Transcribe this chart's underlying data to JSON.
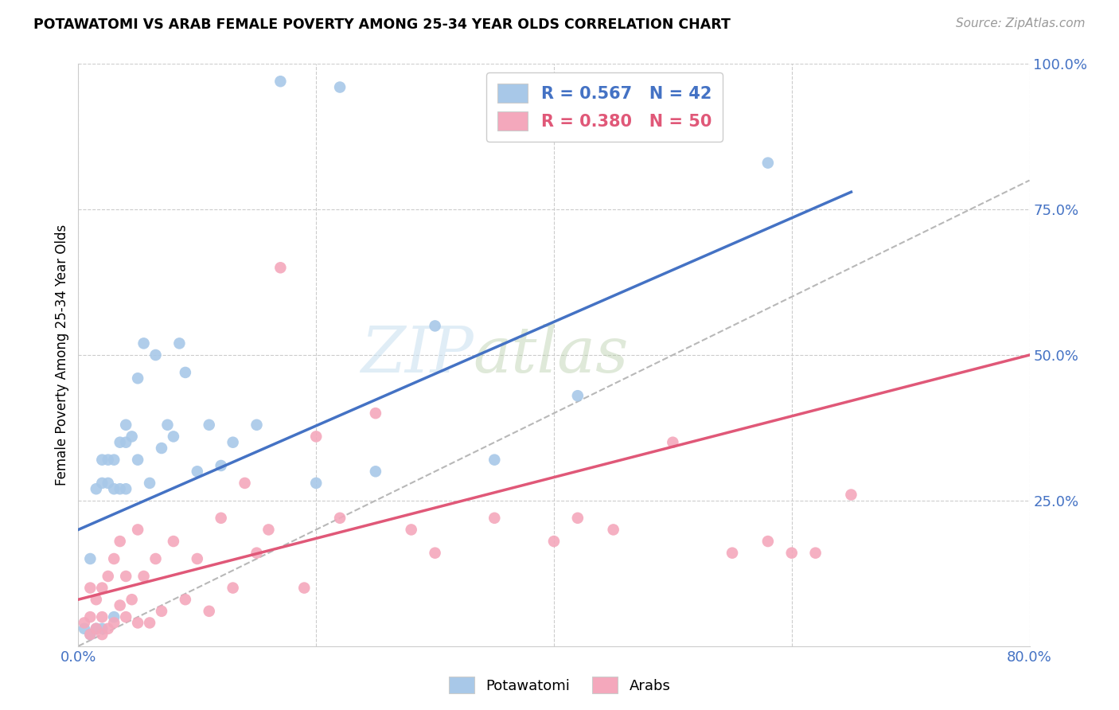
{
  "title": "POTAWATOMI VS ARAB FEMALE POVERTY AMONG 25-34 YEAR OLDS CORRELATION CHART",
  "source": "Source: ZipAtlas.com",
  "ylabel": "Female Poverty Among 25-34 Year Olds",
  "xlim": [
    0.0,
    0.8
  ],
  "ylim": [
    0.0,
    1.0
  ],
  "potawatomi_color": "#a8c8e8",
  "arab_color": "#f4a8bc",
  "potawatomi_line_color": "#4472c4",
  "arab_line_color": "#e05878",
  "diagonal_color": "#b8b8b8",
  "R_potawatomi": 0.567,
  "N_potawatomi": 42,
  "R_arab": 0.38,
  "N_arab": 50,
  "watermark_zip": "ZIP",
  "watermark_atlas": "atlas",
  "pot_line_x0": 0.0,
  "pot_line_y0": 0.2,
  "pot_line_x1": 0.65,
  "pot_line_y1": 0.78,
  "arab_line_x0": 0.0,
  "arab_line_y0": 0.08,
  "arab_line_x1": 0.8,
  "arab_line_y1": 0.5,
  "potawatomi_x": [
    0.005,
    0.01,
    0.01,
    0.015,
    0.015,
    0.02,
    0.02,
    0.02,
    0.025,
    0.025,
    0.03,
    0.03,
    0.03,
    0.035,
    0.035,
    0.04,
    0.04,
    0.04,
    0.045,
    0.05,
    0.05,
    0.055,
    0.06,
    0.065,
    0.07,
    0.075,
    0.08,
    0.085,
    0.09,
    0.1,
    0.11,
    0.12,
    0.13,
    0.15,
    0.17,
    0.2,
    0.22,
    0.25,
    0.3,
    0.35,
    0.42,
    0.58
  ],
  "potawatomi_y": [
    0.03,
    0.02,
    0.15,
    0.03,
    0.27,
    0.03,
    0.28,
    0.32,
    0.28,
    0.32,
    0.05,
    0.27,
    0.32,
    0.27,
    0.35,
    0.27,
    0.35,
    0.38,
    0.36,
    0.32,
    0.46,
    0.52,
    0.28,
    0.5,
    0.34,
    0.38,
    0.36,
    0.52,
    0.47,
    0.3,
    0.38,
    0.31,
    0.35,
    0.38,
    0.97,
    0.28,
    0.96,
    0.3,
    0.55,
    0.32,
    0.43,
    0.83
  ],
  "arab_x": [
    0.005,
    0.01,
    0.01,
    0.01,
    0.015,
    0.015,
    0.02,
    0.02,
    0.02,
    0.025,
    0.025,
    0.03,
    0.03,
    0.035,
    0.035,
    0.04,
    0.04,
    0.045,
    0.05,
    0.05,
    0.055,
    0.06,
    0.065,
    0.07,
    0.08,
    0.09,
    0.1,
    0.11,
    0.12,
    0.13,
    0.14,
    0.15,
    0.16,
    0.17,
    0.19,
    0.2,
    0.22,
    0.25,
    0.28,
    0.3,
    0.35,
    0.4,
    0.42,
    0.45,
    0.5,
    0.55,
    0.58,
    0.6,
    0.62,
    0.65
  ],
  "arab_y": [
    0.04,
    0.02,
    0.05,
    0.1,
    0.03,
    0.08,
    0.02,
    0.05,
    0.1,
    0.03,
    0.12,
    0.04,
    0.15,
    0.07,
    0.18,
    0.05,
    0.12,
    0.08,
    0.04,
    0.2,
    0.12,
    0.04,
    0.15,
    0.06,
    0.18,
    0.08,
    0.15,
    0.06,
    0.22,
    0.1,
    0.28,
    0.16,
    0.2,
    0.65,
    0.1,
    0.36,
    0.22,
    0.4,
    0.2,
    0.16,
    0.22,
    0.18,
    0.22,
    0.2,
    0.35,
    0.16,
    0.18,
    0.16,
    0.16,
    0.26
  ]
}
